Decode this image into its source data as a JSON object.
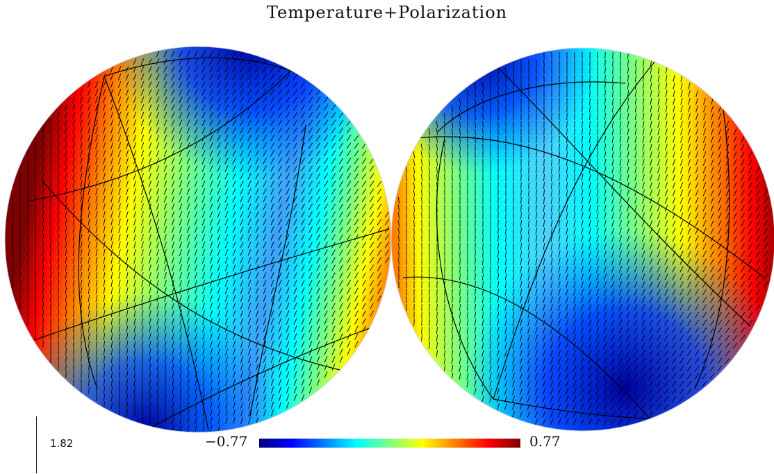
{
  "figure": {
    "title": "Temperature+Polarization",
    "colorbar": {
      "min_label": "−0.77",
      "max_label": "0.77",
      "min": -0.77,
      "max": 0.77,
      "colormap": "jet"
    },
    "scale_bar_label": "1.82",
    "projection": "orthographic",
    "hemispheres": [
      "left",
      "right"
    ]
  },
  "colors": {
    "background": "#ffffff",
    "graticule": "#000000",
    "vectors": "#000000"
  }
}
